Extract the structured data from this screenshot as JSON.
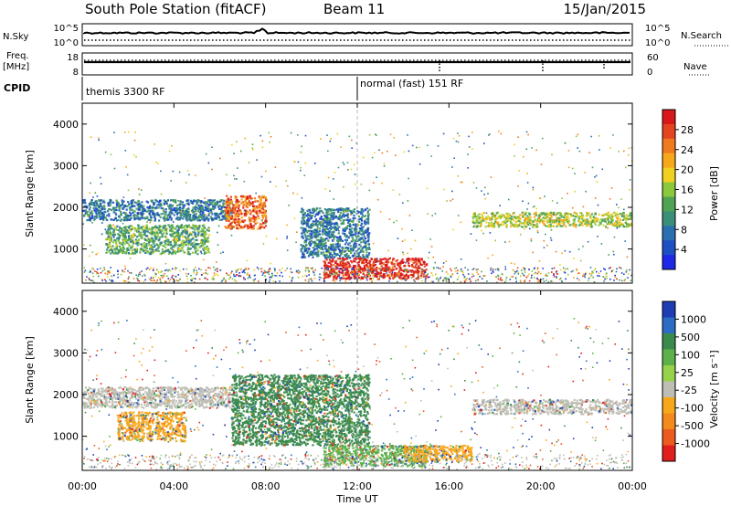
{
  "header": {
    "station": "South Pole Station (fitACF)",
    "beam": "Beam 11",
    "date": "15/Jan/2015"
  },
  "strip_labels": {
    "nsky": "N.Sky",
    "nsky_top": "10^5",
    "nsky_bot": "10^0",
    "nsearch": "N.Search",
    "nsearch_top": "10^5",
    "nsearch_bot": "10^0",
    "freq_line1": "Freq.",
    "freq_line2": "[MHz]",
    "freq_top": "18",
    "freq_bot": "8",
    "nave": "Nave",
    "nave_top": "60",
    "nave_bot": "0",
    "cpid": "CPID"
  },
  "cpid_segments": [
    {
      "start_hour": 0,
      "end_hour": 12,
      "label": "themis 3300 RF"
    },
    {
      "start_hour": 12,
      "end_hour": 24,
      "label": "normal (fast) 151 RF"
    }
  ],
  "chart_data": [
    {
      "type": "heatmap",
      "panel": "power",
      "xlabel": "Time UT",
      "ylabel": "Slant Range [km]",
      "xlim_hours": [
        0,
        24
      ],
      "ylim": [
        180,
        4500
      ],
      "x_tick_labels": [
        "00:00",
        "04:00",
        "08:00",
        "12:00",
        "16:00",
        "20:00",
        "00:00"
      ],
      "y_ticks": [
        1000,
        2000,
        3000,
        4000
      ],
      "colorbar": {
        "label": "Power [dB]",
        "ticks": [
          "4",
          "8",
          "12",
          "16",
          "20",
          "24",
          "28"
        ],
        "colors": [
          "#1e28e6",
          "#1d4fc4",
          "#2a6fb0",
          "#3a8f78",
          "#4fa352",
          "#8cc83c",
          "#f0d020",
          "#f7a81a",
          "#f07a1e",
          "#e54420",
          "#d81818"
        ]
      },
      "regions": [
        {
          "name": "echo band 2000 km",
          "t0": 0.0,
          "t1": 6.5,
          "r0": 1700,
          "r1": 2200,
          "value": "8"
        },
        {
          "name": "echo arcs",
          "t0": 1.0,
          "t1": 5.5,
          "r0": 900,
          "r1": 1600,
          "value": "12"
        },
        {
          "name": "strong echo 07-08 UT",
          "t0": 6.2,
          "t1": 8.0,
          "r0": 1500,
          "r1": 2300,
          "value": "24"
        },
        {
          "name": "descending echo",
          "t0": 9.5,
          "t1": 12.5,
          "r0": 800,
          "r1": 2000,
          "value": "8"
        },
        {
          "name": "near range strong echo",
          "t0": 10.5,
          "t1": 15.0,
          "r0": 300,
          "r1": 800,
          "value": "28"
        },
        {
          "name": "echo band 1700 km",
          "t0": 17.0,
          "t1": 24.0,
          "r0": 1550,
          "r1": 1900,
          "value": "16"
        }
      ]
    },
    {
      "type": "heatmap",
      "panel": "velocity",
      "xlabel": "Time UT",
      "ylabel": "Slant Range [km]",
      "xlim_hours": [
        0,
        24
      ],
      "ylim": [
        180,
        4500
      ],
      "x_tick_labels": [
        "00:00",
        "04:00",
        "08:00",
        "12:00",
        "16:00",
        "20:00",
        "00:00"
      ],
      "y_ticks": [
        1000,
        2000,
        3000,
        4000
      ],
      "colorbar": {
        "label": "Velocity [m s⁻¹]",
        "ticks": [
          "1000",
          "500",
          "100",
          "25",
          "-25",
          "-100",
          "-500",
          "-1000"
        ],
        "colors": [
          "#1e3cb4",
          "#2c6cc4",
          "#3a8a4e",
          "#5db04a",
          "#96d24a",
          "#bebeb4",
          "#f7a81a",
          "#f28a1c",
          "#ec5a20",
          "#e01e1e"
        ]
      },
      "regions": [
        {
          "name": "ground scatter band",
          "t0": 0.0,
          "t1": 6.5,
          "r0": 1700,
          "r1": 2200,
          "value": "-25"
        },
        {
          "name": "receding arcs",
          "t0": 1.5,
          "t1": 4.5,
          "r0": 900,
          "r1": 1600,
          "value": "-100"
        },
        {
          "name": "approaching echoes",
          "t0": 6.5,
          "t1": 12.5,
          "r0": 800,
          "r1": 2500,
          "value": "100"
        },
        {
          "name": "near range echoes",
          "t0": 10.5,
          "t1": 15.0,
          "r0": 300,
          "r1": 800,
          "value": "25"
        },
        {
          "name": "receding patch",
          "t0": 14.0,
          "t1": 17.0,
          "r0": 400,
          "r1": 800,
          "value": "-100"
        },
        {
          "name": "ground scatter 1700 km",
          "t0": 17.0,
          "t1": 24.0,
          "r0": 1550,
          "r1": 1900,
          "value": "-25"
        }
      ]
    }
  ]
}
